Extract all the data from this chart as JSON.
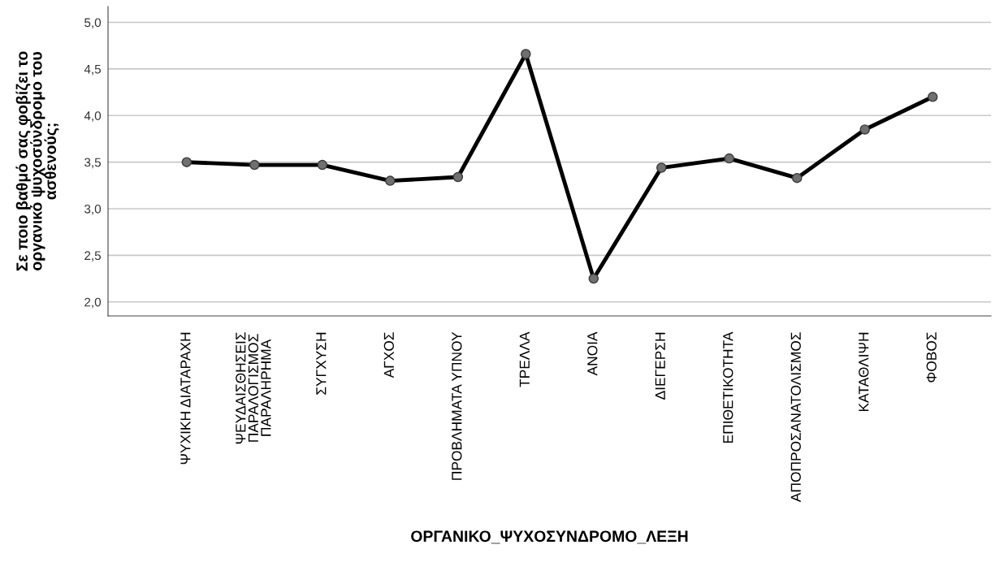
{
  "chart_data": {
    "type": "line",
    "xlabel": "ΟΡΓΑΝΙΚΟ_ΨΥΧΟΣΥΝΔΡΟΜΟ_ΛΕΞΗ",
    "ylabel": "Σε ποιο βαθμό σας φοβίζει το\nοργανικό ψυχοσύνδρομο του\nασθενούς;",
    "categories": [
      "ΨΥΧΙΚΗ ΔΙΑΤΑΡΑΧΗ",
      "ΨΕΥΔΑΙΣΘΗΣΕΙΣ\nΠΑΡΑΛΟΓΙΣΜΟΣ\nΠΑΡΑΛΗΡΗΜΑ",
      "ΣΥΓΧΥΣΗ",
      "ΑΓΧΟΣ",
      "ΠΡΟΒΛΗΜΑΤΑ ΥΠΝΟΥ",
      "ΤΡΕΛΛΑ",
      "ΑΝΟΙΑ",
      "ΔΙΕΓΕΡΣΗ",
      "ΕΠΙΘΕΤΙΚΟΤΗΤΑ",
      "ΑΠΟΠΡΟΣΑΝΑΤΟΛΙΣΜΟΣ",
      "ΚΑΤΑΘΛΙΨΗ",
      "ΦΟΒΟΣ"
    ],
    "series": [
      {
        "color": "#000000",
        "values": [
          3.5,
          3.47,
          3.47,
          3.3,
          3.34,
          4.66,
          2.25,
          3.44,
          3.54,
          3.33,
          3.85,
          4.2
        ]
      }
    ],
    "ylim": [
      1.85,
      5.17
    ],
    "yticks": [
      {
        "value": 2,
        "label": "2,0"
      },
      {
        "value": 2.5,
        "label": "2,5"
      },
      {
        "value": 3,
        "label": "3,0"
      },
      {
        "value": 3.5,
        "label": "3,5"
      },
      {
        "value": 4,
        "label": "4,0"
      },
      {
        "value": 4.5,
        "label": "4,5"
      },
      {
        "value": 5,
        "label": "5,0"
      }
    ],
    "grid": "y",
    "marker": "circle",
    "line_style": "solid"
  }
}
